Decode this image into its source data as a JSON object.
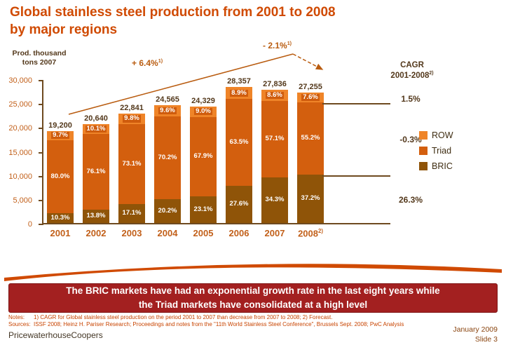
{
  "title": "Global stainless steel production from 2001 to 2008\nby major regions",
  "colors": {
    "accent": "#d04a02",
    "banner_bg": "#a32020",
    "axis": "#6e4a1f",
    "arrow": "#b95c10"
  },
  "chart_data": {
    "type": "bar",
    "stacked": true,
    "title": "Global stainless steel production from 2001 to 2008 by major regions",
    "unit_label": "Prod. thousand\ntons 2007",
    "y_axis": {
      "min": 0,
      "max": 30000,
      "tick_step": 5000,
      "tick_labels": [
        "0",
        "5,000",
        "10,000",
        "15,000",
        "20,000",
        "25,000",
        "30,000"
      ]
    },
    "categories": [
      "2001",
      "2002",
      "2003",
      "2004",
      "2005",
      "2006",
      "2007",
      "2008"
    ],
    "category_superscripts": [
      "",
      "",
      "",
      "",
      "",
      "",
      "",
      "2)"
    ],
    "totals": [
      19200,
      20640,
      22841,
      24565,
      24329,
      28357,
      27836,
      27255
    ],
    "total_labels": [
      "19,200",
      "20,640",
      "22,841",
      "24,565",
      "24,329",
      "28,357",
      "27,836",
      "27,255"
    ],
    "series": [
      {
        "name": "BRIC",
        "color": "#8f5408",
        "pct": [
          10.3,
          13.8,
          17.1,
          20.2,
          23.1,
          27.6,
          34.3,
          37.2
        ]
      },
      {
        "name": "Triad",
        "color": "#d35f0e",
        "pct": [
          80.0,
          76.1,
          73.1,
          70.2,
          67.9,
          63.5,
          57.1,
          55.2
        ]
      },
      {
        "name": "ROW",
        "color": "#ef8428",
        "label_boxed": true,
        "label_bg": "#cf5c0d",
        "pct": [
          9.7,
          10.1,
          9.8,
          9.6,
          9.0,
          8.9,
          8.6,
          7.6
        ]
      }
    ],
    "annotations": {
      "up": {
        "text": "+ 6.4%",
        "sup": "1)"
      },
      "down": {
        "text": "- 2.1%",
        "sup": "1)"
      }
    },
    "cagr": {
      "header_line1": "CAGR",
      "header_line2": "2001-2008",
      "header_sup": "2)",
      "values": [
        "1.5%",
        "-0.3%",
        "26.3%"
      ]
    },
    "legend": [
      {
        "label": "ROW",
        "color": "#ef8428"
      },
      {
        "label": "Triad",
        "color": "#d35f0e"
      },
      {
        "label": "BRIC",
        "color": "#8f5408"
      }
    ]
  },
  "banner": {
    "line1": "The BRIC markets have had an exponential growth rate in the last eight years while",
    "line2": "the Triad markets have consolidated at a high level"
  },
  "notes": {
    "label": "Notes:",
    "text": "1) CAGR for Global stainless steel production on the period 2001 to 2007 than decrease from 2007 to 2008; 2) Forecast."
  },
  "sources": {
    "label": "Sources:",
    "text": "ISSF 2008; Heinz H. Pariser Research; Proceedings and notes from the \"11th World Stainless Steel Conference\", Brussels Sept. 2008; PwC Analysis"
  },
  "footer": {
    "company": "PricewaterhouseCoopers",
    "date": "January 2009",
    "slide": "Slide 3"
  }
}
